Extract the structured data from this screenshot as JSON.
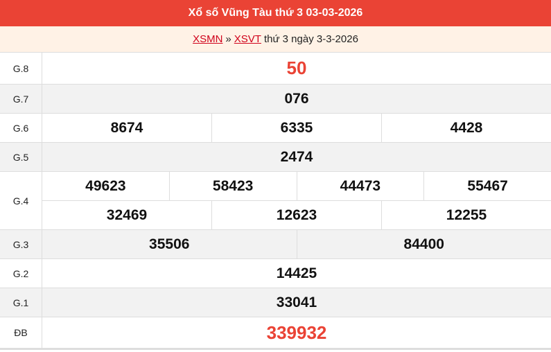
{
  "header": {
    "title": "Xổ số Vũng Tàu thứ 3 03-03-2026"
  },
  "breadcrumb": {
    "link1": "XSMN",
    "sep": "»",
    "link2": "XSVT",
    "rest": "thứ 3 ngày 3-3-2026"
  },
  "prizes": [
    {
      "label": "G.8",
      "rows": [
        [
          "50"
        ]
      ]
    },
    {
      "label": "G.7",
      "rows": [
        [
          "076"
        ]
      ]
    },
    {
      "label": "G.6",
      "rows": [
        [
          "8674",
          "6335",
          "4428"
        ]
      ]
    },
    {
      "label": "G.5",
      "rows": [
        [
          "2474"
        ]
      ]
    },
    {
      "label": "G.4",
      "rows": [
        [
          "49623",
          "58423",
          "44473",
          "55467"
        ],
        [
          "32469",
          "12623",
          "12255"
        ]
      ]
    },
    {
      "label": "G.3",
      "rows": [
        [
          "35506",
          "84400"
        ]
      ]
    },
    {
      "label": "G.2",
      "rows": [
        [
          "14425"
        ]
      ]
    },
    {
      "label": "G.1",
      "rows": [
        [
          "33041"
        ]
      ]
    },
    {
      "label": "ĐB",
      "rows": [
        [
          "339932"
        ]
      ]
    }
  ],
  "colors": {
    "header": "#ea4335",
    "highlight": "#ea4335",
    "link": "#d0021b"
  }
}
